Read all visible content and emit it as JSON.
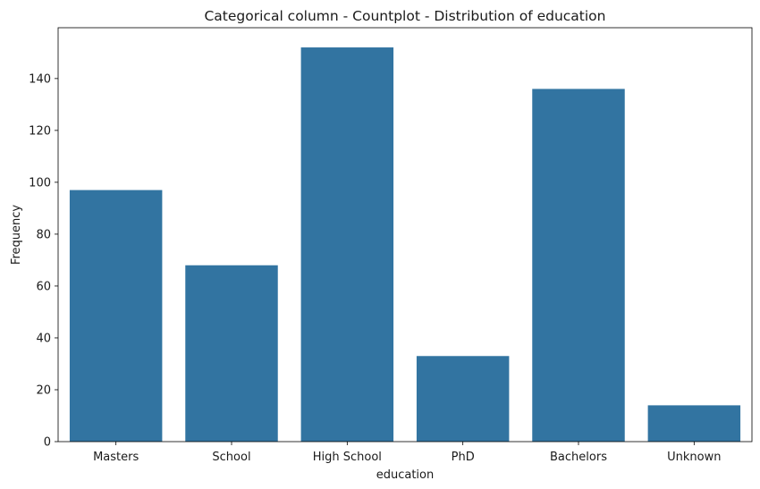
{
  "chart_data": {
    "type": "bar",
    "title": "Categorical column - Countplot - Distribution of education",
    "xlabel": "education",
    "ylabel": "Frequency",
    "categories": [
      "Masters",
      "School",
      "High School",
      "PhD",
      "Bachelors",
      "Unknown"
    ],
    "values": [
      97,
      68,
      152,
      33,
      136,
      14
    ],
    "ylim": [
      0,
      159.6
    ],
    "yticks": [
      0,
      20,
      40,
      60,
      80,
      100,
      120,
      140
    ],
    "grid": false,
    "legend": "none",
    "bar_color": "#3274a1"
  }
}
